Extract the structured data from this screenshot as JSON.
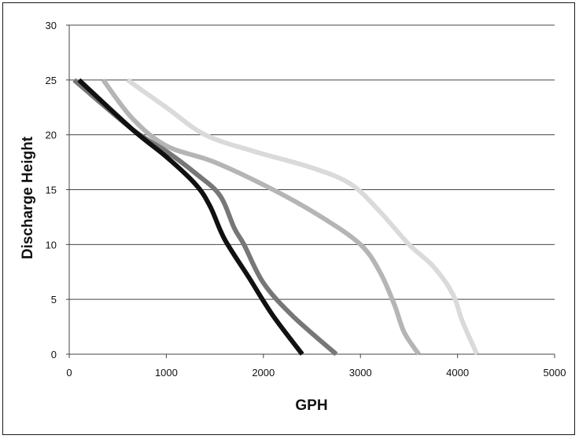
{
  "chart_data": {
    "type": "line",
    "title": "",
    "xlabel": "GPH",
    "ylabel": "Discharge Height",
    "xlim": [
      0,
      5000
    ],
    "ylim": [
      0,
      30
    ],
    "x_ticks": [
      0,
      1000,
      2000,
      3000,
      4000,
      5000
    ],
    "y_ticks": [
      0,
      5,
      10,
      15,
      20,
      25,
      30
    ],
    "grid": "horizontal",
    "legend": "none",
    "series": [
      {
        "color": "#111111",
        "points": [
          [
            100,
            25
          ],
          [
            650,
            20.5
          ],
          [
            1000,
            18
          ],
          [
            1300,
            15.5
          ],
          [
            1450,
            13.5
          ],
          [
            1600,
            10.5
          ],
          [
            1850,
            7
          ],
          [
            2100,
            3.5
          ],
          [
            2400,
            0
          ]
        ]
      },
      {
        "color": "#777777",
        "points": [
          [
            50,
            25
          ],
          [
            650,
            20.5
          ],
          [
            1000,
            18.5
          ],
          [
            1300,
            16.5
          ],
          [
            1550,
            14.5
          ],
          [
            1700,
            11.5
          ],
          [
            1800,
            10
          ],
          [
            2000,
            6.5
          ],
          [
            2300,
            3.5
          ],
          [
            2750,
            0
          ]
        ]
      },
      {
        "color": "#b5b5b5",
        "points": [
          [
            350,
            25
          ],
          [
            650,
            21.5
          ],
          [
            1000,
            19
          ],
          [
            1500,
            17.5
          ],
          [
            2100,
            15
          ],
          [
            2600,
            12.5
          ],
          [
            3000,
            10
          ],
          [
            3200,
            7.5
          ],
          [
            3350,
            4.5
          ],
          [
            3450,
            2
          ],
          [
            3600,
            0
          ]
        ]
      },
      {
        "color": "#dadada",
        "points": [
          [
            600,
            25
          ],
          [
            1000,
            22.5
          ],
          [
            1400,
            20
          ],
          [
            1900,
            18.5
          ],
          [
            2500,
            17
          ],
          [
            2900,
            15.5
          ],
          [
            3200,
            13
          ],
          [
            3500,
            10
          ],
          [
            3750,
            8
          ],
          [
            3950,
            5.5
          ],
          [
            4050,
            3
          ],
          [
            4200,
            0
          ]
        ]
      }
    ]
  }
}
